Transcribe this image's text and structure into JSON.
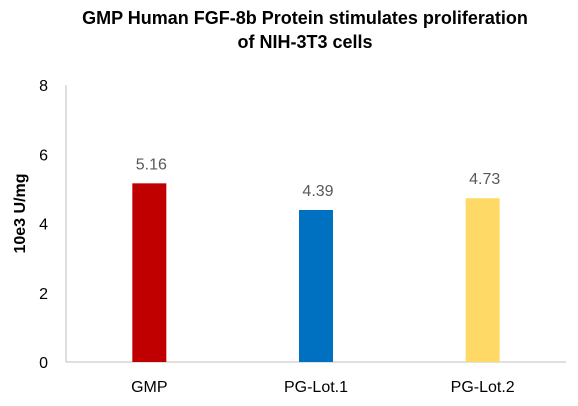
{
  "chart_data": {
    "type": "bar",
    "title_line1": "GMP Human FGF-8b Protein stimulates proliferation",
    "title_line2": "of NIH-3T3 cells",
    "xlabel": "",
    "ylabel": "10e3 U/mg",
    "ylim": [
      0,
      8
    ],
    "yticks": [
      "0",
      "2",
      "4",
      "6",
      "8"
    ],
    "categories": [
      "GMP",
      "PG-Lot.1",
      "PG-Lot.2"
    ],
    "values": [
      5.16,
      4.39,
      4.73
    ],
    "data_labels": [
      "5.16",
      "4.39",
      "4.73"
    ],
    "colors": [
      "#c00000",
      "#0070c0",
      "#ffd966"
    ],
    "grid": false,
    "legend": "none"
  }
}
